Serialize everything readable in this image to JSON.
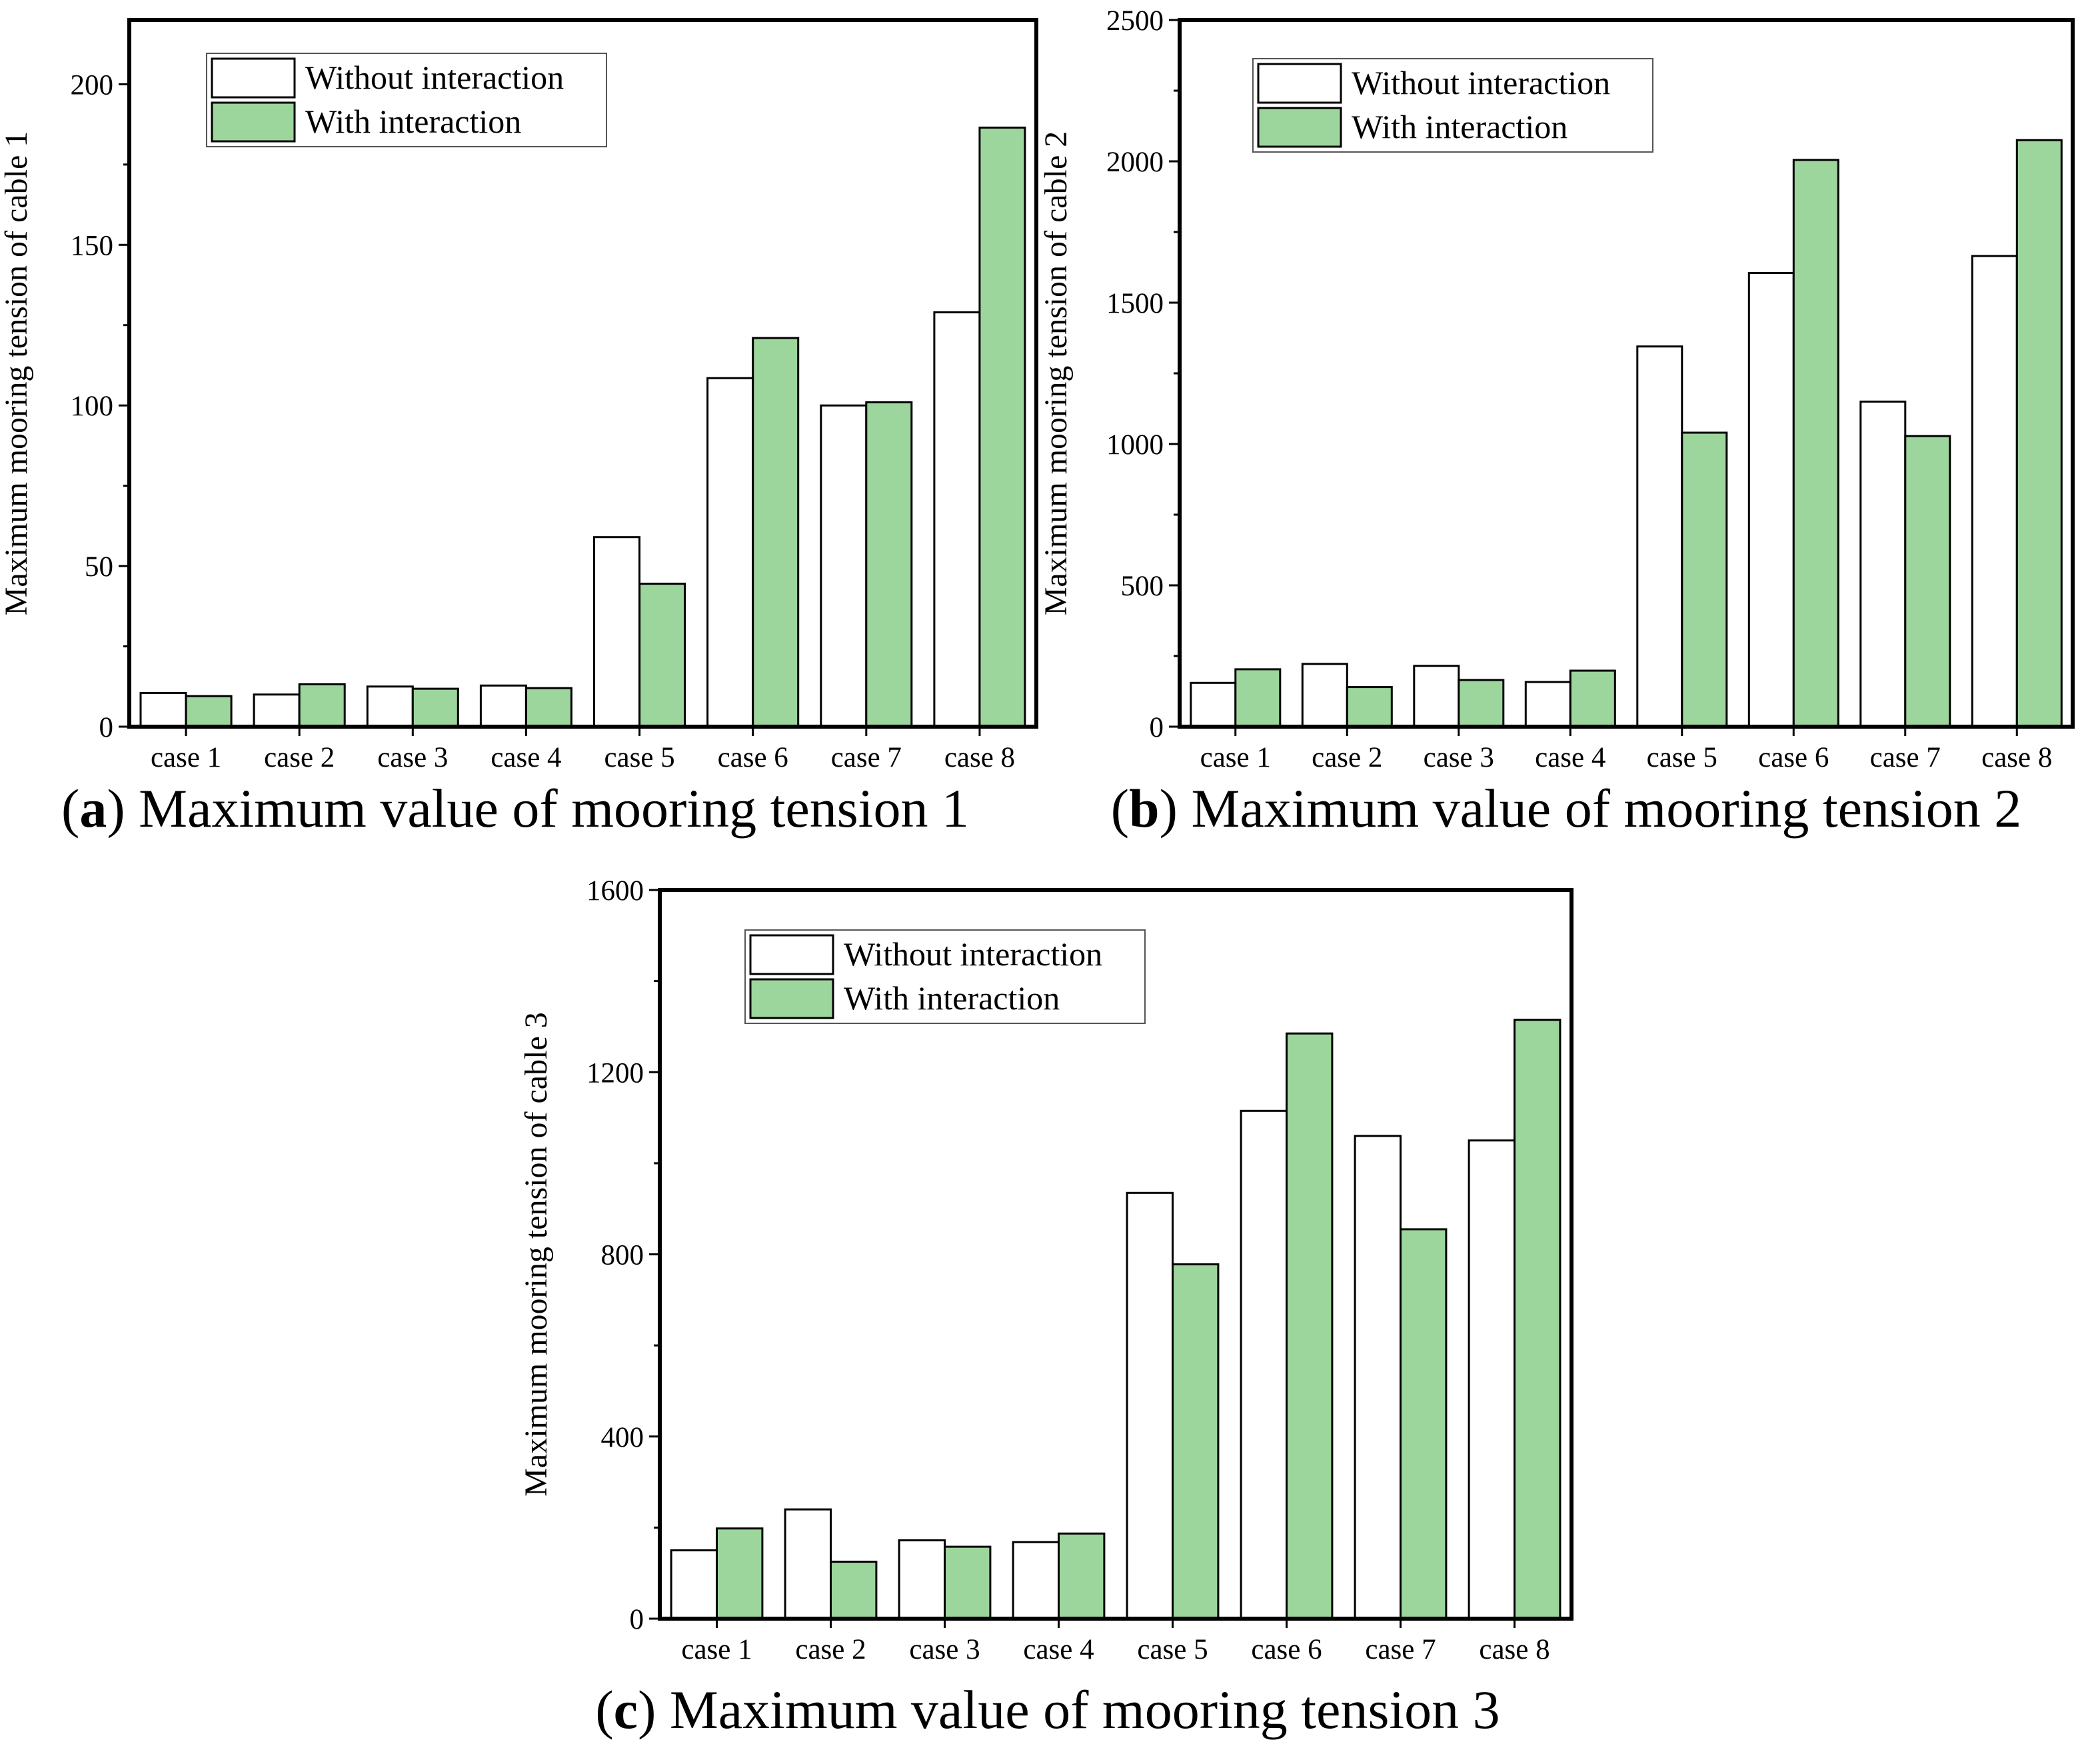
{
  "chart_data": [
    {
      "type": "bar",
      "panel_tag": "a",
      "caption": "Maximum value of mooring tension 1",
      "ylabel": "Maximum mooring tension of cable 1",
      "xlabel": "",
      "ylim": [
        0,
        220
      ],
      "yticks": [
        0,
        50,
        100,
        150,
        200
      ],
      "legend_position": "top-left",
      "categories": [
        "case 1",
        "case 2",
        "case 3",
        "case 4",
        "case 5",
        "case 6",
        "case 7",
        "case 8"
      ],
      "series": [
        {
          "name": "Without interaction",
          "color": "#ffffff",
          "values": [
            10.5,
            10,
            12.5,
            12.8,
            59,
            108.5,
            100,
            129
          ]
        },
        {
          "name": "With interaction",
          "color": "#9cd69c",
          "values": [
            9.5,
            13.2,
            11.8,
            12,
            44.5,
            121,
            101,
            186.5
          ]
        }
      ]
    },
    {
      "type": "bar",
      "panel_tag": "b",
      "caption": "Maximum value of mooring tension 2",
      "ylabel": "Maximum mooring tension of cable 2",
      "xlabel": "",
      "ylim": [
        0,
        2500
      ],
      "yticks": [
        0,
        500,
        1000,
        1500,
        2000,
        2500
      ],
      "legend_position": "top-left",
      "categories": [
        "case 1",
        "case 2",
        "case 3",
        "case 4",
        "case 5",
        "case 6",
        "case 7",
        "case 8"
      ],
      "series": [
        {
          "name": "Without interaction",
          "color": "#ffffff",
          "values": [
            155,
            222,
            215,
            158,
            1345,
            1605,
            1150,
            1665
          ]
        },
        {
          "name": "With interaction",
          "color": "#9cd69c",
          "values": [
            203,
            140,
            165,
            198,
            1040,
            2005,
            1028,
            2075
          ]
        }
      ]
    },
    {
      "type": "bar",
      "panel_tag": "c",
      "caption": "Maximum value of mooring tension 3",
      "ylabel": "Maximum mooring tension of cable 3",
      "xlabel": "",
      "ylim": [
        0,
        1600
      ],
      "yticks": [
        0,
        400,
        800,
        1200,
        1600
      ],
      "legend_position": "top-left",
      "categories": [
        "case 1",
        "case 2",
        "case 3",
        "case 4",
        "case 5",
        "case 6",
        "case 7",
        "case 8"
      ],
      "series": [
        {
          "name": "Without interaction",
          "color": "#ffffff",
          "values": [
            150,
            240,
            172,
            168,
            935,
            1115,
            1060,
            1050
          ]
        },
        {
          "name": "With interaction",
          "color": "#9cd69c",
          "values": [
            198,
            125,
            158,
            187,
            778,
            1285,
            855,
            1315
          ]
        }
      ]
    }
  ]
}
